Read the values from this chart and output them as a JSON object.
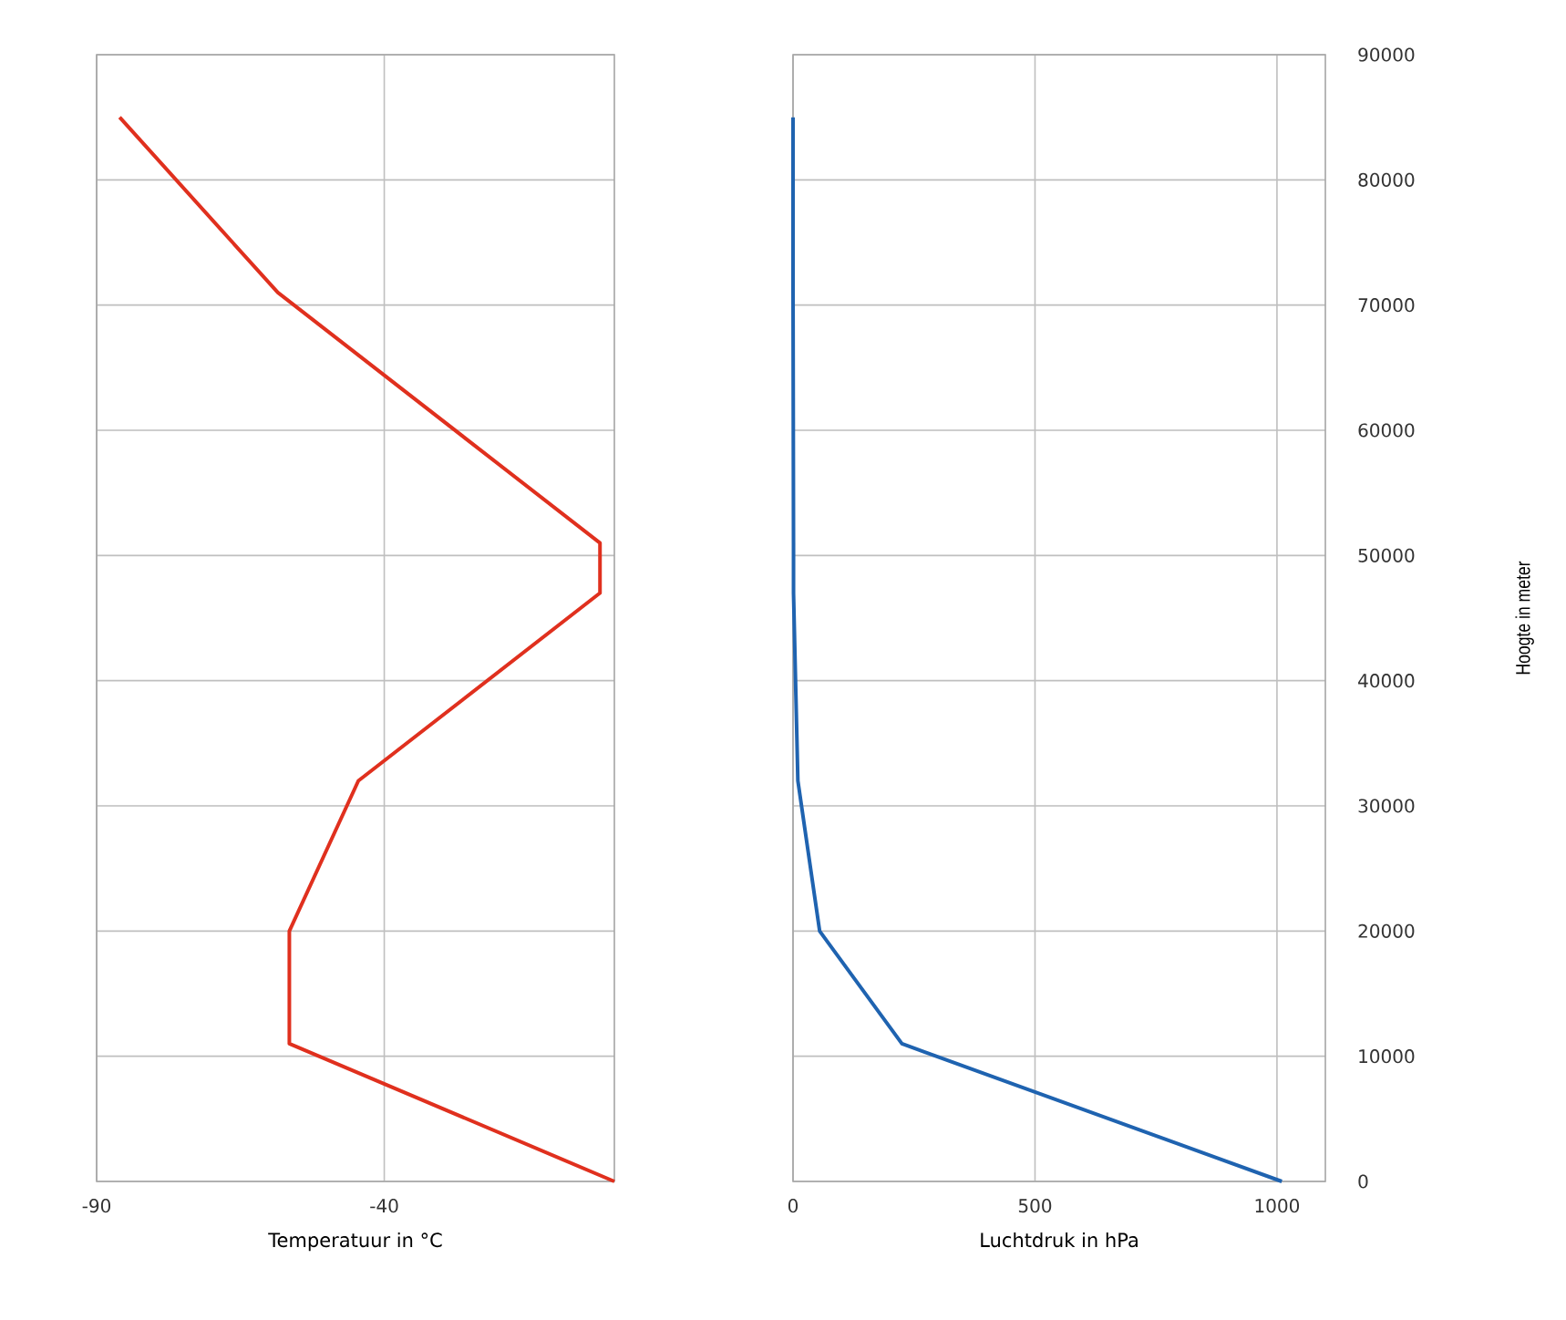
{
  "chart_data": [
    {
      "type": "line",
      "xlabel": "Temperatuur in °C",
      "xlim": [
        -90,
        0
      ],
      "xticks": [
        -90,
        -40
      ],
      "ylim": [
        0,
        90000
      ],
      "yticks": [
        0,
        10000,
        20000,
        30000,
        40000,
        50000,
        60000,
        70000,
        80000,
        90000
      ],
      "grid": true,
      "tick_labels": "x",
      "marker": "none",
      "series": [
        {
          "color": "#e0301e",
          "x": [
            0,
            -56.5,
            -56.5,
            -44.5,
            -2.5,
            -2.5,
            -58.5,
            -86
          ],
          "values": [
            0,
            11000,
            20000,
            32000,
            47000,
            51000,
            71000,
            85000
          ]
        }
      ]
    },
    {
      "type": "line",
      "xlabel": "Luchtdruk in hPa",
      "ylabel": "Hoogte in meter",
      "xlim": [
        0,
        1100
      ],
      "xticks": [
        0,
        500,
        1000
      ],
      "ylim": [
        0,
        90000
      ],
      "yticks": [
        0,
        10000,
        20000,
        30000,
        40000,
        50000,
        60000,
        70000,
        80000,
        90000
      ],
      "grid": true,
      "marker": "none",
      "series": [
        {
          "color": "#1f63b0",
          "x": [
            1010,
            225,
            55,
            10,
            1,
            1,
            0,
            0
          ],
          "values": [
            0,
            11000,
            20000,
            32000,
            47000,
            51000,
            71000,
            85000
          ]
        }
      ]
    }
  ]
}
